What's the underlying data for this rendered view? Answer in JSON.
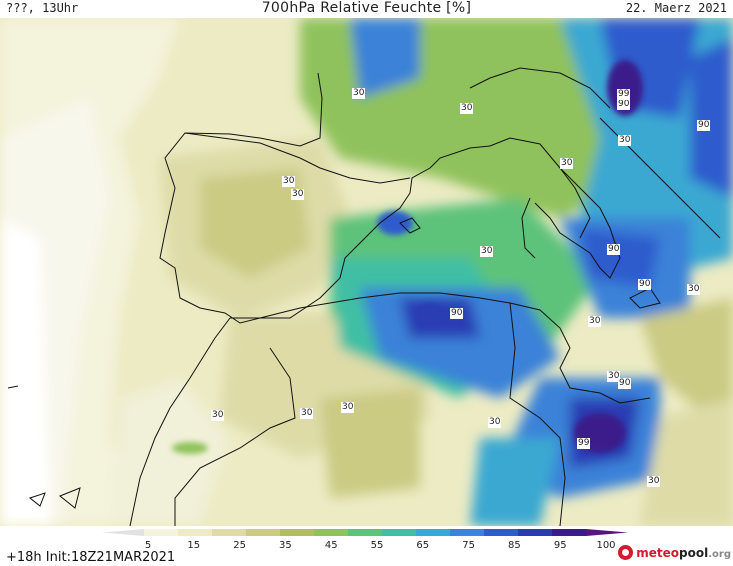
{
  "header": {
    "left": "???, 13Uhr",
    "title": "700hPa Relative Feuchte [%]",
    "date": "22. Maerz 2021"
  },
  "run_info": "+18h Init:18Z21MAR2021",
  "logo": {
    "part1": "meteo",
    "part2": "pool",
    "part3": ".org"
  },
  "colorbar": {
    "colors": [
      "#e2e2e2",
      "#f4f3dc",
      "#ecebc3",
      "#dedba7",
      "#cbcb84",
      "#b2bc62",
      "#8fc25c",
      "#5dc27a",
      "#3fbfa4",
      "#3aa8d2",
      "#3b82d8",
      "#2f5ccd",
      "#2a3cb3",
      "#3b1a8a",
      "#55157a"
    ],
    "labels": [
      "5",
      "15",
      "25",
      "35",
      "45",
      "55",
      "65",
      "75",
      "85",
      "95",
      "100"
    ]
  },
  "contour_labels": [
    "30",
    "30",
    "30",
    "30",
    "30",
    "30",
    "30",
    "30",
    "30",
    "30",
    "30",
    "30",
    "30",
    "30",
    "90",
    "90",
    "90",
    "90",
    "90",
    "90",
    "99",
    "99"
  ]
}
